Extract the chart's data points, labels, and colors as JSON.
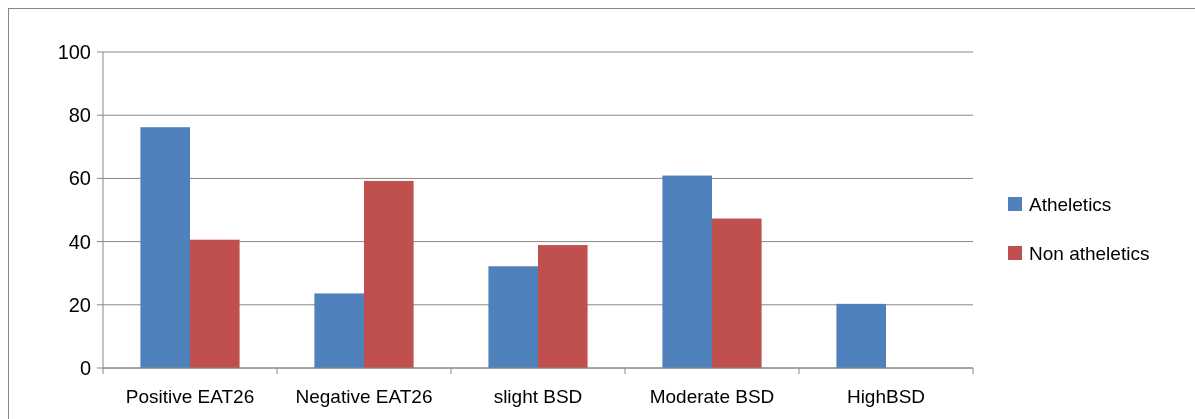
{
  "chart_data": {
    "type": "bar",
    "categories": [
      "Positive EAT26",
      "Negative EAT26",
      "slight BSD",
      "Moderate BSD",
      "HighBSD"
    ],
    "series": [
      {
        "name": "Atheletics",
        "color": "#4f81bd",
        "values": [
          76.2,
          23.6,
          32.2,
          60.9,
          20.3
        ]
      },
      {
        "name": "Non atheletics",
        "color": "#c0504d",
        "values": [
          40.6,
          59.2,
          38.9,
          47.3,
          0
        ]
      }
    ],
    "ylim": [
      0,
      100
    ],
    "yticks": [
      0,
      20,
      40,
      60,
      80,
      100
    ],
    "grid": "y",
    "legend": "right"
  }
}
